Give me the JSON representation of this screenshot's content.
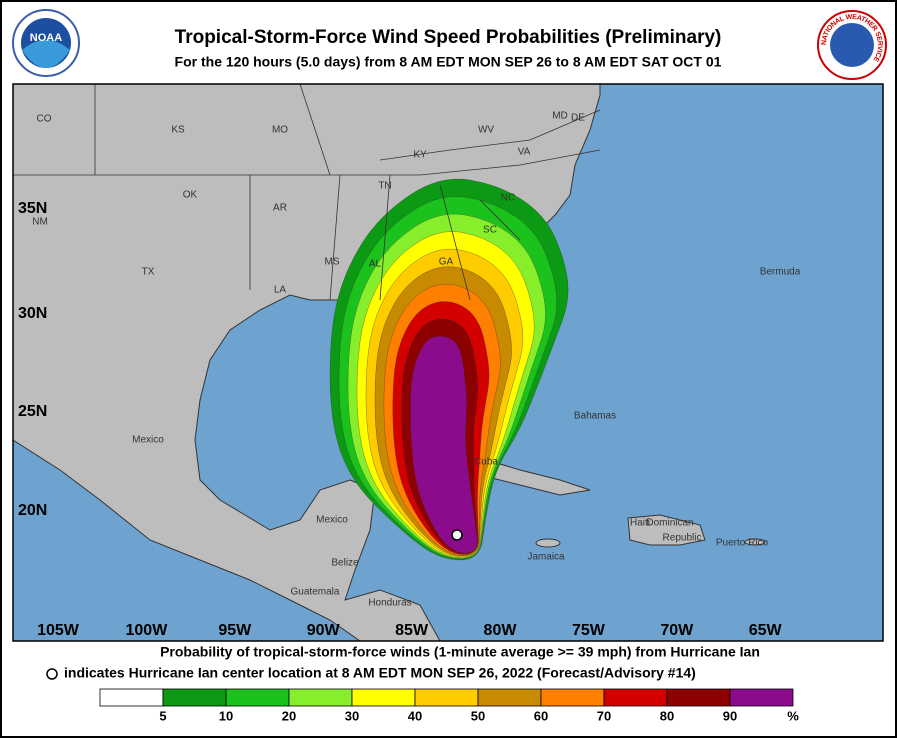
{
  "header": {
    "title": "Tropical-Storm-Force Wind Speed Probabilities (Preliminary)",
    "subtitle": "For the 120 hours (5.0 days) from 8 AM EDT MON SEP 26 to 8 AM EDT SAT OCT 01",
    "noaa_logo": "NOAA",
    "nws_logo": "NATIONAL WEATHER SERVICE"
  },
  "map": {
    "lat_labels": [
      "35N",
      "30N",
      "25N",
      "20N"
    ],
    "lon_labels": [
      "105W",
      "100W",
      "95W",
      "90W",
      "85W",
      "80W",
      "75W",
      "70W",
      "65W"
    ],
    "labels": [
      "CO",
      "KS",
      "MO",
      "WV",
      "MD",
      "DE",
      "KY",
      "VA",
      "TN",
      "NC",
      "OK",
      "AR",
      "SC",
      "NM",
      "TX",
      "MS",
      "AL",
      "GA",
      "LA",
      "Mexico",
      "Bermuda",
      "Bahamas",
      "Cuba",
      "Haiti",
      "Dominican",
      "Republic",
      "Puerto Rico",
      "Jamaica",
      "Belize",
      "Guatemala",
      "Honduras",
      "Mexico"
    ]
  },
  "footer": {
    "line1": "Probability of tropical-storm-force winds (1-minute average >= 39 mph) from Hurricane Ian",
    "line2": "indicates Hurricane Ian center location at 8 AM EDT MON SEP 26, 2022 (Forecast/Advisory #14)"
  },
  "legend": {
    "thresholds": [
      5,
      10,
      20,
      30,
      40,
      50,
      60,
      70,
      80,
      90
    ],
    "colors": [
      "#ffffff",
      "#0c9a14",
      "#1cc21c",
      "#86ee2a",
      "#ffff00",
      "#ffcc00",
      "#c88a00",
      "#ff8000",
      "#d40000",
      "#8c0000",
      "#8c0a8c"
    ],
    "unit_label": "%"
  }
}
